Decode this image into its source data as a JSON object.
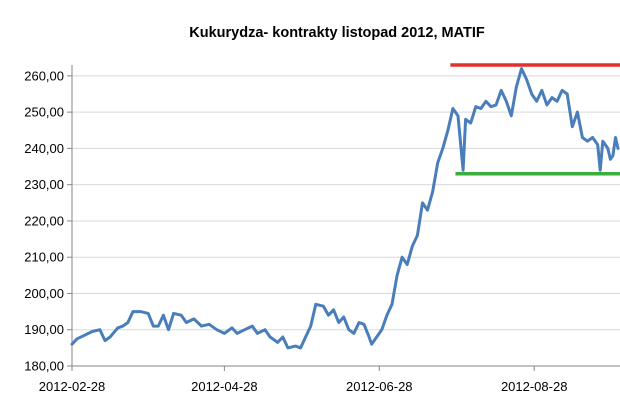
{
  "chart_data": {
    "type": "line",
    "title": "Kukurydza- kontrakty listopad 2012, MATIF",
    "xlabel": "",
    "ylabel": "",
    "x_tick_labels": [
      "2012-02-28",
      "2012-04-28",
      "2012-06-28",
      "2012-08-28"
    ],
    "y_tick_labels": [
      "180,00",
      "190,00",
      "200,00",
      "210,00",
      "220,00",
      "230,00",
      "240,00",
      "250,00",
      "260,00"
    ],
    "ylim": [
      180,
      263
    ],
    "xlim": [
      "2012-02-28",
      "2012-09-30"
    ],
    "grid": "horizontal",
    "legend": "none",
    "series": [
      {
        "color": "#4a7ebb",
        "points": [
          [
            "2012-02-28",
            186.0
          ],
          [
            "2012-03-01",
            187.5
          ],
          [
            "2012-03-04",
            188.5
          ],
          [
            "2012-03-07",
            189.5
          ],
          [
            "2012-03-10",
            190.0
          ],
          [
            "2012-03-12",
            187.0
          ],
          [
            "2012-03-14",
            188.0
          ],
          [
            "2012-03-17",
            190.5
          ],
          [
            "2012-03-19",
            191.0
          ],
          [
            "2012-03-21",
            192.0
          ],
          [
            "2012-03-23",
            195.0
          ],
          [
            "2012-03-26",
            195.0
          ],
          [
            "2012-03-29",
            194.5
          ],
          [
            "2012-03-31",
            191.0
          ],
          [
            "2012-04-02",
            191.0
          ],
          [
            "2012-04-04",
            194.0
          ],
          [
            "2012-04-06",
            190.0
          ],
          [
            "2012-04-08",
            194.5
          ],
          [
            "2012-04-11",
            194.0
          ],
          [
            "2012-04-13",
            192.0
          ],
          [
            "2012-04-16",
            193.0
          ],
          [
            "2012-04-19",
            191.0
          ],
          [
            "2012-04-22",
            191.5
          ],
          [
            "2012-04-25",
            190.0
          ],
          [
            "2012-04-28",
            189.0
          ],
          [
            "2012-05-01",
            190.5
          ],
          [
            "2012-05-03",
            189.0
          ],
          [
            "2012-05-06",
            190.0
          ],
          [
            "2012-05-09",
            191.0
          ],
          [
            "2012-05-11",
            189.0
          ],
          [
            "2012-05-14",
            190.0
          ],
          [
            "2012-05-16",
            188.0
          ],
          [
            "2012-05-19",
            186.5
          ],
          [
            "2012-05-21",
            188.0
          ],
          [
            "2012-05-23",
            185.0
          ],
          [
            "2012-05-26",
            185.5
          ],
          [
            "2012-05-28",
            185.0
          ],
          [
            "2012-05-30",
            188.0
          ],
          [
            "2012-06-01",
            191.0
          ],
          [
            "2012-06-03",
            197.0
          ],
          [
            "2012-06-06",
            196.5
          ],
          [
            "2012-06-08",
            194.0
          ],
          [
            "2012-06-10",
            195.5
          ],
          [
            "2012-06-12",
            192.0
          ],
          [
            "2012-06-14",
            193.5
          ],
          [
            "2012-06-16",
            190.0
          ],
          [
            "2012-06-18",
            189.0
          ],
          [
            "2012-06-20",
            192.0
          ],
          [
            "2012-06-22",
            191.5
          ],
          [
            "2012-06-24",
            188.0
          ],
          [
            "2012-06-25",
            186.0
          ],
          [
            "2012-06-27",
            188.0
          ],
          [
            "2012-06-29",
            190.0
          ],
          [
            "2012-07-01",
            194.0
          ],
          [
            "2012-07-03",
            197.0
          ],
          [
            "2012-07-05",
            205.0
          ],
          [
            "2012-07-07",
            210.0
          ],
          [
            "2012-07-09",
            208.0
          ],
          [
            "2012-07-11",
            213.0
          ],
          [
            "2012-07-13",
            216.0
          ],
          [
            "2012-07-15",
            225.0
          ],
          [
            "2012-07-17",
            223.0
          ],
          [
            "2012-07-19",
            228.0
          ],
          [
            "2012-07-21",
            236.0
          ],
          [
            "2012-07-23",
            240.0
          ],
          [
            "2012-07-25",
            245.0
          ],
          [
            "2012-07-27",
            251.0
          ],
          [
            "2012-07-29",
            249.0
          ],
          [
            "2012-07-31",
            234.0
          ],
          [
            "2012-08-01",
            248.0
          ],
          [
            "2012-08-03",
            247.0
          ],
          [
            "2012-08-05",
            251.5
          ],
          [
            "2012-08-07",
            251.0
          ],
          [
            "2012-08-09",
            253.0
          ],
          [
            "2012-08-11",
            251.5
          ],
          [
            "2012-08-13",
            252.0
          ],
          [
            "2012-08-15",
            256.0
          ],
          [
            "2012-08-17",
            253.0
          ],
          [
            "2012-08-19",
            249.0
          ],
          [
            "2012-08-21",
            257.0
          ],
          [
            "2012-08-23",
            262.0
          ],
          [
            "2012-08-25",
            259.0
          ],
          [
            "2012-08-27",
            255.0
          ],
          [
            "2012-08-29",
            253.0
          ],
          [
            "2012-08-31",
            256.0
          ],
          [
            "2012-09-02",
            252.0
          ],
          [
            "2012-09-04",
            254.0
          ],
          [
            "2012-09-06",
            253.0
          ],
          [
            "2012-09-08",
            256.0
          ],
          [
            "2012-09-10",
            255.0
          ],
          [
            "2012-09-12",
            246.0
          ],
          [
            "2012-09-14",
            250.0
          ],
          [
            "2012-09-16",
            243.0
          ],
          [
            "2012-09-18",
            242.0
          ],
          [
            "2012-09-20",
            243.0
          ],
          [
            "2012-09-22",
            241.0
          ],
          [
            "2012-09-23",
            234.0
          ],
          [
            "2012-09-24",
            242.0
          ],
          [
            "2012-09-26",
            240.0
          ],
          [
            "2012-09-27",
            237.0
          ],
          [
            "2012-09-28",
            238.0
          ],
          [
            "2012-09-29",
            243.0
          ],
          [
            "2012-09-30",
            240.0
          ]
        ]
      }
    ],
    "reference_lines": [
      {
        "kind": "resistance",
        "value": 263.0,
        "x_start": "2012-07-26",
        "x_end": "2012-09-30",
        "color": "#e0312c"
      },
      {
        "kind": "support",
        "value": 233.0,
        "x_start": "2012-07-28",
        "x_end": "2012-09-30",
        "color": "#3aad3a"
      }
    ]
  }
}
